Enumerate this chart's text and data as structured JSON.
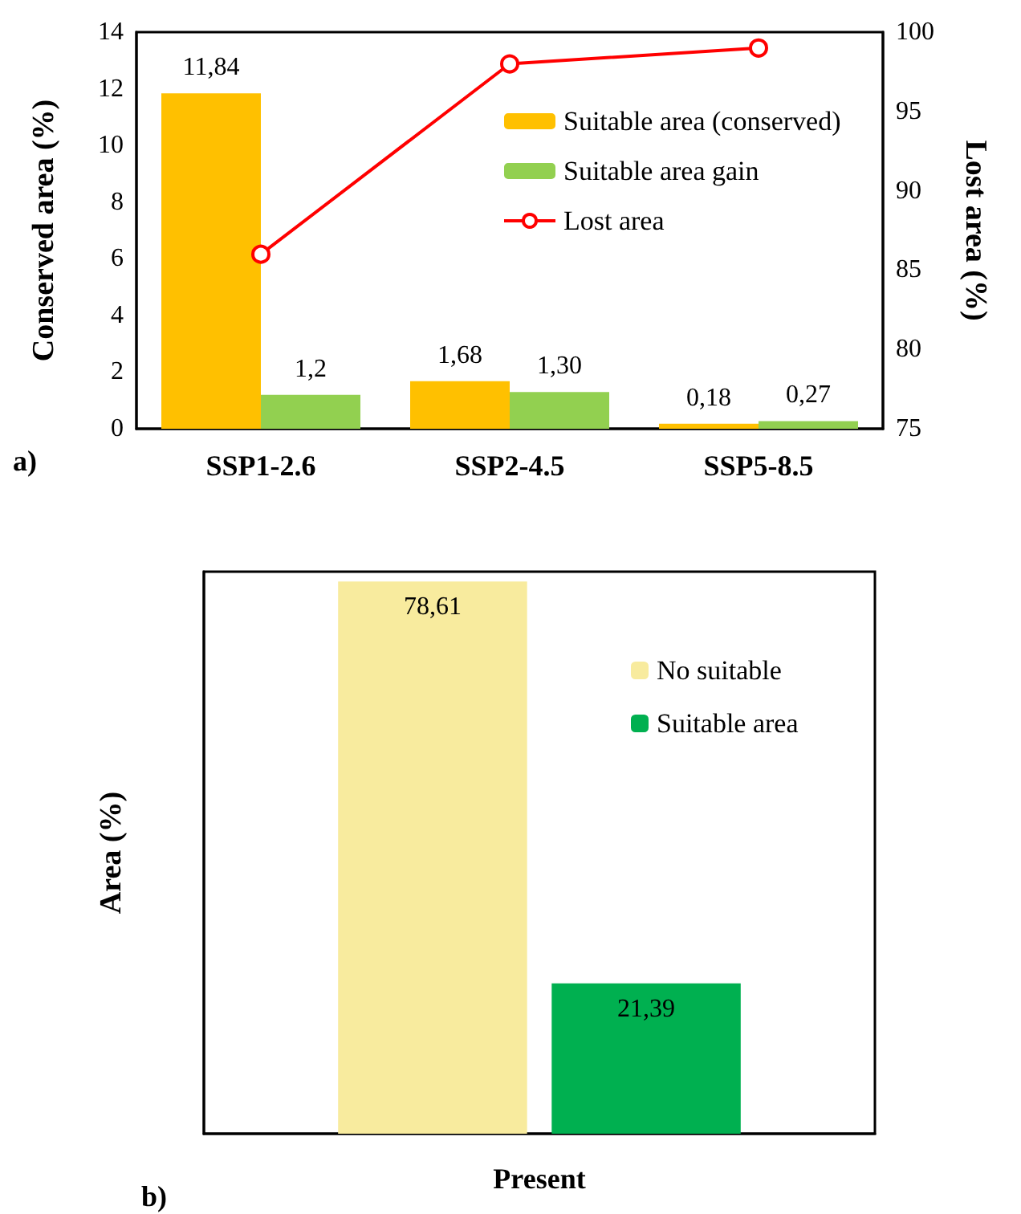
{
  "chart_data": [
    {
      "type": "bar",
      "categories": [
        "SSP1-2.6",
        "SSP2-4.5",
        "SSP5-8.5"
      ],
      "ylabel": "Conserved area (%)",
      "y2label": "Lost area (%)",
      "ylim": [
        0,
        14
      ],
      "yticks": [
        0,
        2,
        4,
        6,
        8,
        10,
        12,
        14
      ],
      "y2lim": [
        75,
        100
      ],
      "y2ticks": [
        75,
        80,
        85,
        90,
        95,
        100
      ],
      "legend": "top right",
      "marker": "circle",
      "annotations": [
        "a)"
      ],
      "series": [
        {
          "name": "Suitable area (conserved)",
          "color": "#ffc000",
          "values": [
            11.84,
            1.68,
            0.18
          ],
          "value_labels": [
            "11,84",
            "1,68",
            "0,18"
          ]
        },
        {
          "name": "Suitable area gain",
          "color": "#92d050",
          "values": [
            1.2,
            1.3,
            0.27
          ],
          "value_labels": [
            "1,2",
            "1,30",
            "0,27"
          ]
        },
        {
          "name": "Lost area",
          "type": "line",
          "axis": "y2",
          "color": "#ff0000",
          "values": [
            86,
            98,
            99
          ]
        }
      ]
    },
    {
      "type": "bar",
      "categories": [
        null
      ],
      "xlabel": "Present",
      "ylabel": "Area (%)",
      "legend": "top right",
      "annotations": [
        "b)"
      ],
      "series": [
        {
          "name": "No suitable",
          "color": "#f8eb9e",
          "values": [
            78.61
          ],
          "value_labels": [
            "78,61"
          ]
        },
        {
          "name": "Suitable area",
          "color": "#00b050",
          "values": [
            21.39
          ],
          "value_labels": [
            "21,39"
          ]
        }
      ]
    }
  ]
}
